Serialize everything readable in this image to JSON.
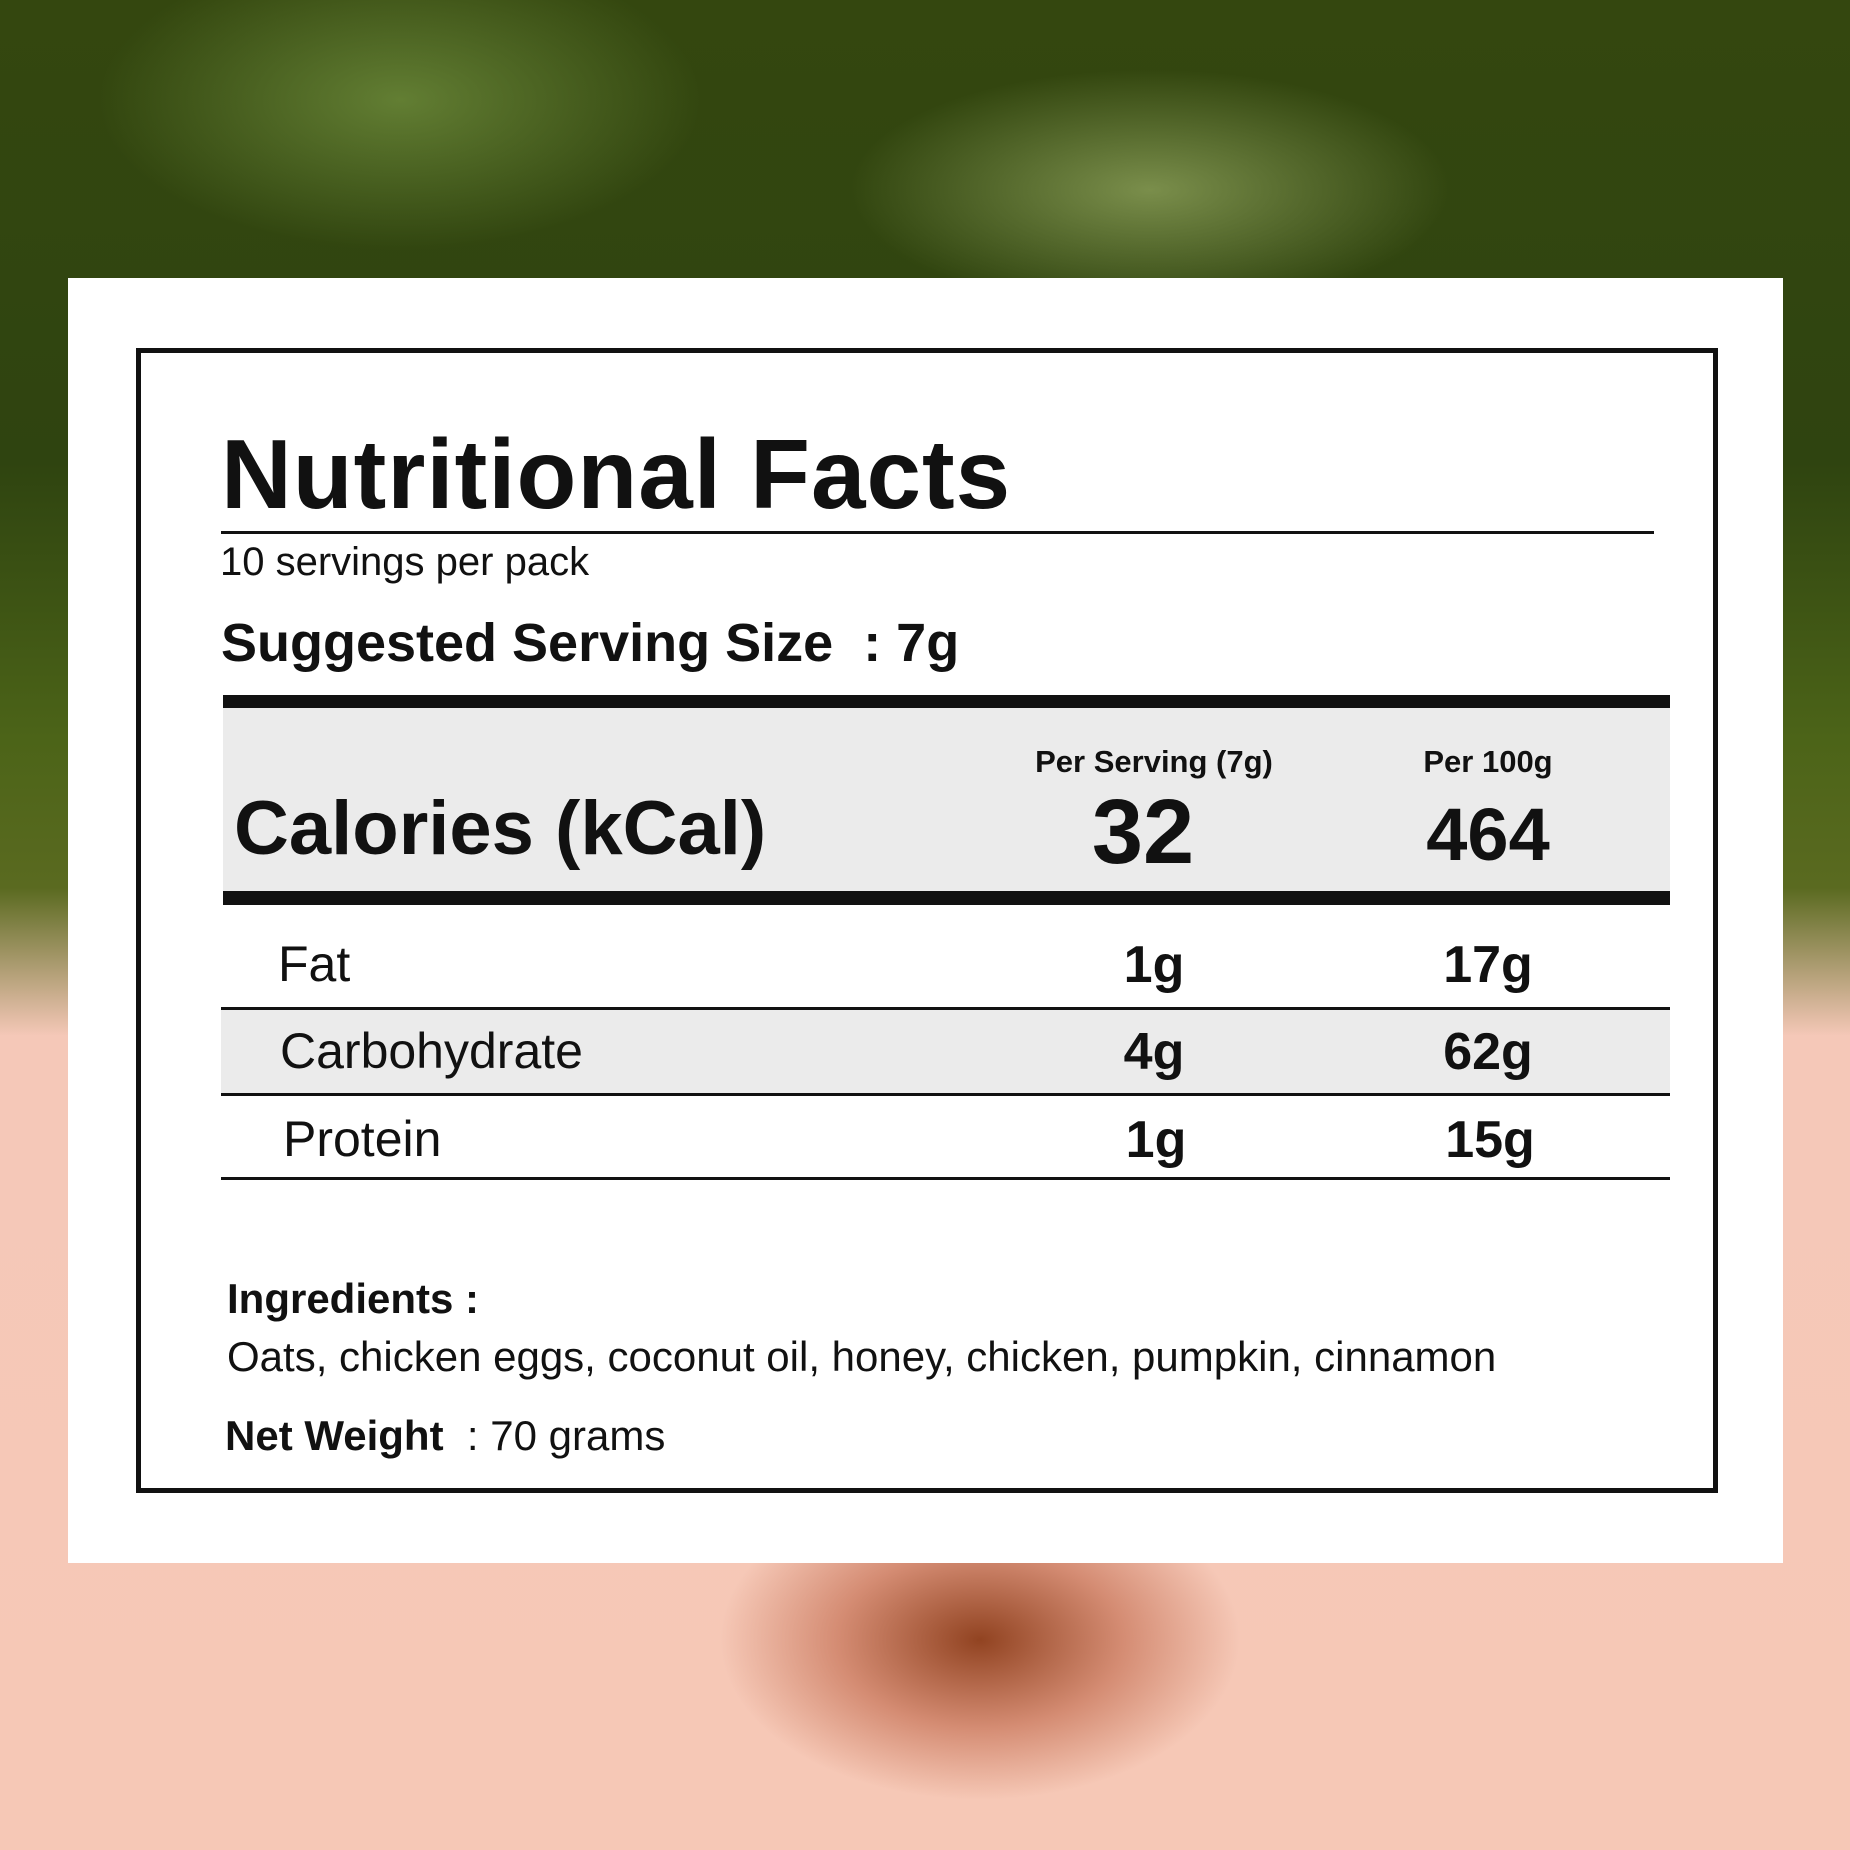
{
  "title": "Nutritional Facts",
  "servings_per_pack": "10 servings per pack",
  "serving_size": {
    "label": "Suggested Serving Size",
    "value": ": 7g"
  },
  "calories": {
    "label": "Calories (kCal)",
    "col1_header": "Per Serving (7g)",
    "col2_header": "Per 100g",
    "per_serving": "32",
    "per_100g": "464"
  },
  "nutrients": [
    {
      "name": "Fat",
      "per_serving": "1g",
      "per_100g": "17g"
    },
    {
      "name": "Carbohydrate",
      "per_serving": "4g",
      "per_100g": "62g"
    },
    {
      "name": "Protein",
      "per_serving": "1g",
      "per_100g": "15g"
    }
  ],
  "ingredients": {
    "label": "Ingredients :",
    "text": "Oats, chicken eggs, coconut oil, honey, chicken, pumpkin, cinnamon"
  },
  "net_weight": {
    "label": "Net Weight",
    "value": ": 70 grams"
  },
  "colors": {
    "row_shade": "#ebebeb",
    "ink": "#111111"
  }
}
